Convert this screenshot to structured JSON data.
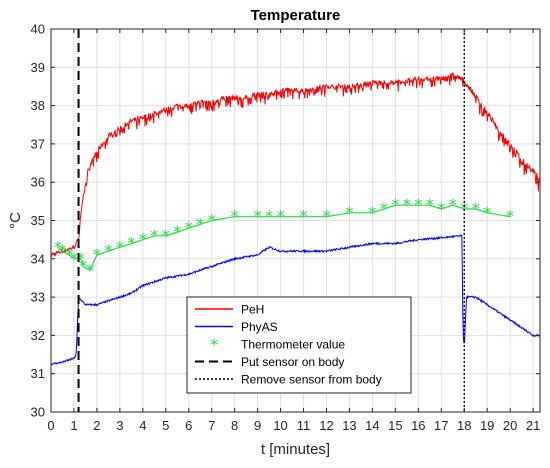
{
  "chart_data": {
    "type": "line",
    "title": "Temperature",
    "xlabel": "t [minutes]",
    "ylabel": "°C",
    "xlim": [
      0,
      21.3
    ],
    "ylim": [
      30,
      40
    ],
    "xticks": [
      0,
      1,
      2,
      3,
      4,
      5,
      6,
      7,
      8,
      9,
      10,
      11,
      12,
      13,
      14,
      15,
      16,
      17,
      18,
      19,
      20,
      21
    ],
    "yticks": [
      30,
      31,
      32,
      33,
      34,
      35,
      36,
      37,
      38,
      39,
      40
    ],
    "grid": true,
    "legend_position": "bottom-center",
    "series": [
      {
        "name": "PeH",
        "color": "#ff0000",
        "style": "solid",
        "x": [
          0,
          0.5,
          1.0,
          1.2,
          1.3,
          1.6,
          2.0,
          2.5,
          3.0,
          3.5,
          4.0,
          4.5,
          5.0,
          5.5,
          6.0,
          6.5,
          7.0,
          7.5,
          8.0,
          8.5,
          9.0,
          9.5,
          10.0,
          11.0,
          12.0,
          13.0,
          14.0,
          15.0,
          16.0,
          17.0,
          17.5,
          17.9,
          18.3,
          18.7,
          19.0,
          19.5,
          20.0,
          20.5,
          21.0,
          21.3
        ],
        "y": [
          34.1,
          34.2,
          34.3,
          34.5,
          35.2,
          36.3,
          36.8,
          37.2,
          37.4,
          37.6,
          37.7,
          37.8,
          37.9,
          38.0,
          38.0,
          38.1,
          38.1,
          38.2,
          38.2,
          38.2,
          38.3,
          38.3,
          38.4,
          38.4,
          38.5,
          38.5,
          38.6,
          38.6,
          38.7,
          38.7,
          38.8,
          38.7,
          38.4,
          38.1,
          37.8,
          37.4,
          37.0,
          36.6,
          36.3,
          36.1
        ],
        "noise": 0.35
      },
      {
        "name": "PhyAS",
        "color": "#0000ff",
        "style": "solid",
        "x": [
          0,
          0.5,
          1.0,
          1.1,
          1.2,
          1.5,
          2.0,
          2.5,
          3.0,
          3.5,
          4.0,
          5.0,
          6.0,
          7.0,
          8.0,
          9.0,
          9.5,
          10.0,
          11.0,
          12.0,
          13.0,
          14.0,
          15.0,
          16.0,
          17.0,
          17.9,
          17.95,
          18.0,
          18.1,
          18.5,
          19.0,
          19.5,
          20.0,
          20.5,
          21.0,
          21.3
        ],
        "y": [
          31.25,
          31.3,
          31.4,
          31.5,
          33.0,
          32.8,
          32.8,
          32.9,
          33.0,
          33.1,
          33.3,
          33.5,
          33.6,
          33.8,
          34.0,
          34.1,
          34.3,
          34.2,
          34.2,
          34.2,
          34.3,
          34.4,
          34.4,
          34.5,
          34.55,
          34.6,
          32.0,
          31.7,
          33.0,
          33.0,
          32.8,
          32.6,
          32.4,
          32.2,
          32.0,
          32.0
        ],
        "noise": 0.05
      },
      {
        "name": "Thermometer value",
        "color": "#22dd44",
        "style": "marker-line",
        "x": [
          0.3,
          0.5,
          0.8,
          1.0,
          1.3,
          1.4,
          1.7,
          2.0,
          2.5,
          3.0,
          3.5,
          4.0,
          4.5,
          5.0,
          5.5,
          6.0,
          6.5,
          7.0,
          8.0,
          9.0,
          9.5,
          10.0,
          11.0,
          12.0,
          13.0,
          14.0,
          14.5,
          15.0,
          15.5,
          16.0,
          16.5,
          17.0,
          17.5,
          18.0,
          18.5,
          19.0,
          20.0
        ],
        "y": [
          34.3,
          34.2,
          34.1,
          34.0,
          34.0,
          33.8,
          33.7,
          34.1,
          34.2,
          34.3,
          34.4,
          34.5,
          34.6,
          34.6,
          34.7,
          34.8,
          34.9,
          35.0,
          35.1,
          35.1,
          35.1,
          35.1,
          35.1,
          35.1,
          35.2,
          35.2,
          35.3,
          35.4,
          35.4,
          35.4,
          35.4,
          35.3,
          35.4,
          35.3,
          35.3,
          35.2,
          35.1
        ]
      }
    ],
    "annotations": [
      {
        "name": "Put sensor on body",
        "x": 1.2,
        "style": "dashed",
        "color": "#000000"
      },
      {
        "name": "Remove sensor from body",
        "x": 18.0,
        "style": "dotted",
        "color": "#000000"
      }
    ]
  }
}
